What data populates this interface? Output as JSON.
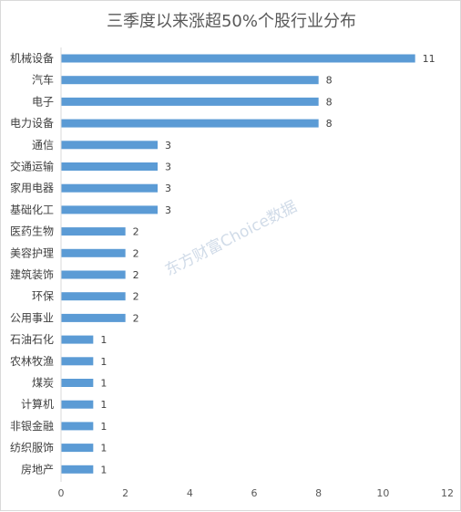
{
  "chart_data": {
    "type": "bar",
    "orientation": "horizontal",
    "title": "三季度以来涨超50%个股行业分布",
    "categories": [
      "机械设备",
      "汽车",
      "电子",
      "电力设备",
      "通信",
      "交通运输",
      "家用电器",
      "基础化工",
      "医药生物",
      "美容护理",
      "建筑装饰",
      "环保",
      "公用事业",
      "石油石化",
      "农林牧渔",
      "煤炭",
      "计算机",
      "非银金融",
      "纺织服饰",
      "房地产"
    ],
    "values": [
      11,
      8,
      8,
      8,
      3,
      3,
      3,
      3,
      2,
      2,
      2,
      2,
      2,
      1,
      1,
      1,
      1,
      1,
      1,
      1
    ],
    "xlim": [
      0,
      12
    ],
    "xticks": [
      0,
      2,
      4,
      6,
      8,
      10,
      12
    ],
    "xlabel": "",
    "ylabel": "",
    "grid": false,
    "bar_color": "#5b9bd5",
    "data_labels": true
  },
  "watermark": "东方财富Choice数据"
}
